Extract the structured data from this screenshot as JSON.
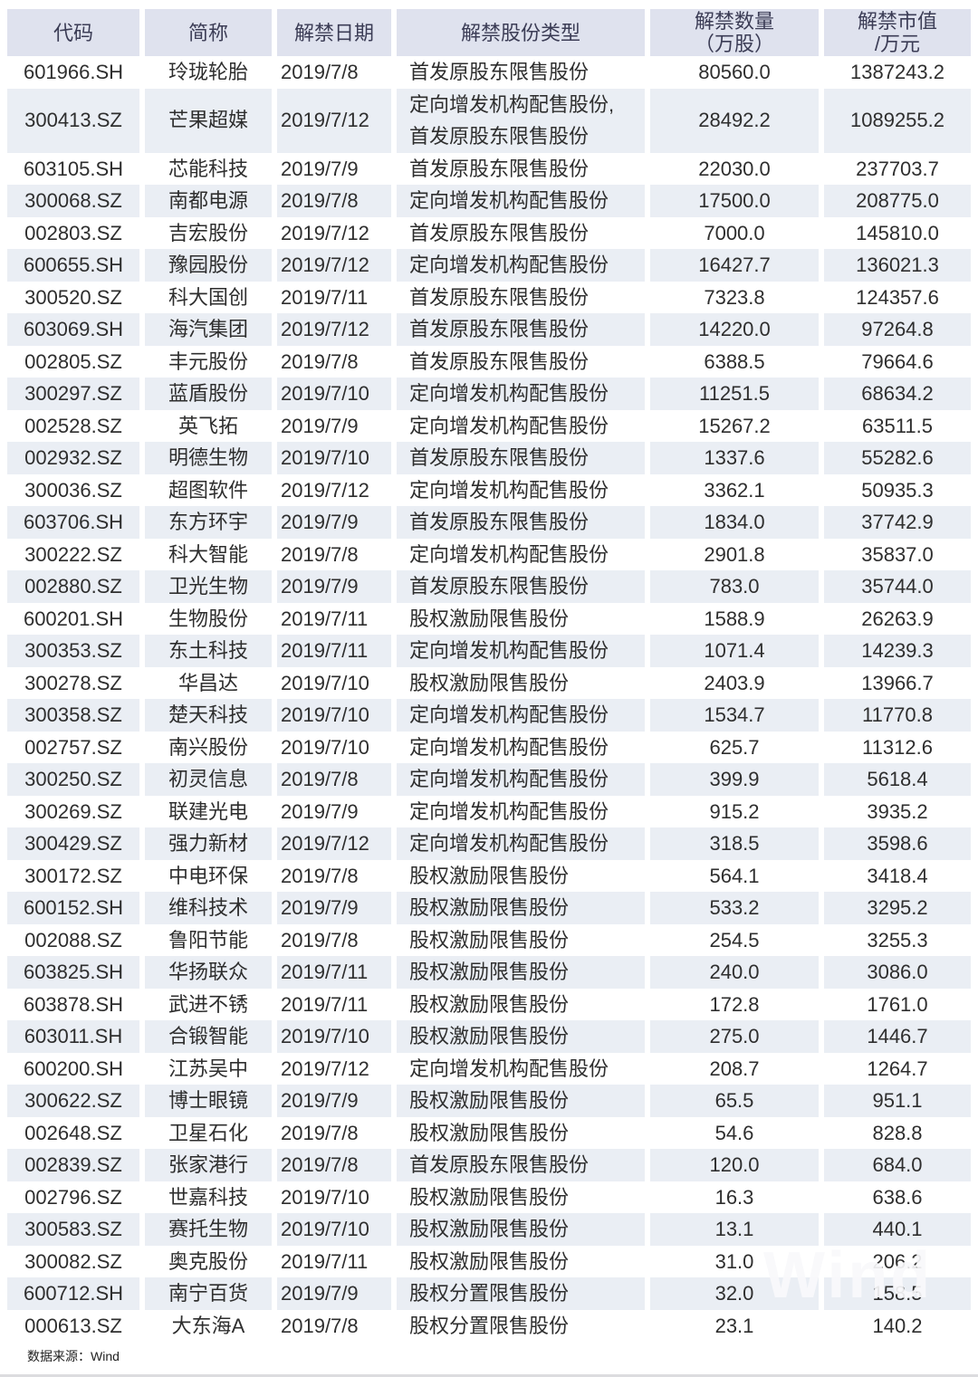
{
  "chart_data": {
    "type": "table",
    "title": "",
    "columns": [
      "代码",
      "简称",
      "解禁日期",
      "解禁股份类型",
      "解禁数量（万股）",
      "解禁市值/万元"
    ],
    "column_display": [
      "代码",
      "简称",
      "解禁日期",
      "解禁股份类型",
      "解禁数量\n（万股）",
      "解禁市值\n/万元"
    ],
    "rows": [
      [
        "601966.SH",
        "玲珑轮胎",
        "2019/7/8",
        "首发原股东限售股份",
        "80560.0",
        "1387243.2"
      ],
      [
        "300413.SZ",
        "芒果超媒",
        "2019/7/12",
        "定向增发机构配售股份,\n首发原股东限售股份",
        "28492.2",
        "1089255.2"
      ],
      [
        "603105.SH",
        "芯能科技",
        "2019/7/9",
        "首发原股东限售股份",
        "22030.0",
        "237703.7"
      ],
      [
        "300068.SZ",
        "南都电源",
        "2019/7/8",
        "定向增发机构配售股份",
        "17500.0",
        "208775.0"
      ],
      [
        "002803.SZ",
        "吉宏股份",
        "2019/7/12",
        "首发原股东限售股份",
        "7000.0",
        "145810.0"
      ],
      [
        "600655.SH",
        "豫园股份",
        "2019/7/12",
        "定向增发机构配售股份",
        "16427.7",
        "136021.3"
      ],
      [
        "300520.SZ",
        "科大国创",
        "2019/7/11",
        "首发原股东限售股份",
        "7323.8",
        "124357.6"
      ],
      [
        "603069.SH",
        "海汽集团",
        "2019/7/12",
        "首发原股东限售股份",
        "14220.0",
        "97264.8"
      ],
      [
        "002805.SZ",
        "丰元股份",
        "2019/7/8",
        "首发原股东限售股份",
        "6388.5",
        "79664.6"
      ],
      [
        "300297.SZ",
        "蓝盾股份",
        "2019/7/10",
        "定向增发机构配售股份",
        "11251.5",
        "68634.2"
      ],
      [
        "002528.SZ",
        "英飞拓",
        "2019/7/9",
        "定向增发机构配售股份",
        "15267.2",
        "63511.5"
      ],
      [
        "002932.SZ",
        "明德生物",
        "2019/7/10",
        "首发原股东限售股份",
        "1337.6",
        "55282.6"
      ],
      [
        "300036.SZ",
        "超图软件",
        "2019/7/12",
        "定向增发机构配售股份",
        "3362.1",
        "50935.3"
      ],
      [
        "603706.SH",
        "东方环宇",
        "2019/7/9",
        "首发原股东限售股份",
        "1834.0",
        "37742.9"
      ],
      [
        "300222.SZ",
        "科大智能",
        "2019/7/8",
        "定向增发机构配售股份",
        "2901.8",
        "35837.0"
      ],
      [
        "002880.SZ",
        "卫光生物",
        "2019/7/9",
        "首发原股东限售股份",
        "783.0",
        "35744.0"
      ],
      [
        "600201.SH",
        "生物股份",
        "2019/7/11",
        "股权激励限售股份",
        "1588.9",
        "26263.9"
      ],
      [
        "300353.SZ",
        "东土科技",
        "2019/7/11",
        "定向增发机构配售股份",
        "1071.4",
        "14239.3"
      ],
      [
        "300278.SZ",
        "华昌达",
        "2019/7/10",
        "股权激励限售股份",
        "2403.9",
        "13966.7"
      ],
      [
        "300358.SZ",
        "楚天科技",
        "2019/7/10",
        "定向增发机构配售股份",
        "1534.7",
        "11770.8"
      ],
      [
        "002757.SZ",
        "南兴股份",
        "2019/7/10",
        "定向增发机构配售股份",
        "625.7",
        "11312.6"
      ],
      [
        "300250.SZ",
        "初灵信息",
        "2019/7/8",
        "定向增发机构配售股份",
        "399.9",
        "5618.4"
      ],
      [
        "300269.SZ",
        "联建光电",
        "2019/7/9",
        "定向增发机构配售股份",
        "915.2",
        "3935.2"
      ],
      [
        "300429.SZ",
        "强力新材",
        "2019/7/12",
        "定向增发机构配售股份",
        "318.5",
        "3598.6"
      ],
      [
        "300172.SZ",
        "中电环保",
        "2019/7/8",
        "股权激励限售股份",
        "564.1",
        "3418.4"
      ],
      [
        "600152.SH",
        "维科技术",
        "2019/7/9",
        "股权激励限售股份",
        "533.2",
        "3295.2"
      ],
      [
        "002088.SZ",
        "鲁阳节能",
        "2019/7/8",
        "股权激励限售股份",
        "254.5",
        "3255.3"
      ],
      [
        "603825.SH",
        "华扬联众",
        "2019/7/11",
        "股权激励限售股份",
        "240.0",
        "3086.0"
      ],
      [
        "603878.SH",
        "武进不锈",
        "2019/7/11",
        "股权激励限售股份",
        "172.8",
        "1761.0"
      ],
      [
        "603011.SH",
        "合锻智能",
        "2019/7/10",
        "股权激励限售股份",
        "275.0",
        "1446.7"
      ],
      [
        "600200.SH",
        "江苏吴中",
        "2019/7/12",
        "定向增发机构配售股份",
        "208.7",
        "1264.7"
      ],
      [
        "300622.SZ",
        "博士眼镜",
        "2019/7/9",
        "股权激励限售股份",
        "65.5",
        "951.1"
      ],
      [
        "002648.SZ",
        "卫星石化",
        "2019/7/8",
        "股权激励限售股份",
        "54.6",
        "828.8"
      ],
      [
        "002839.SZ",
        "张家港行",
        "2019/7/8",
        "首发原股东限售股份",
        "120.0",
        "684.0"
      ],
      [
        "002796.SZ",
        "世嘉科技",
        "2019/7/10",
        "股权激励限售股份",
        "16.3",
        "638.6"
      ],
      [
        "300583.SZ",
        "赛托生物",
        "2019/7/10",
        "股权激励限售股份",
        "13.1",
        "440.1"
      ],
      [
        "300082.SZ",
        "奥克股份",
        "2019/7/11",
        "股权激励限售股份",
        "31.0",
        "206.2"
      ],
      [
        "600712.SH",
        "南宁百货",
        "2019/7/9",
        "股权分置限售股份",
        "32.0",
        "158.5"
      ],
      [
        "000613.SZ",
        "大东海A",
        "2019/7/8",
        "股权分置限售股份",
        "23.1",
        "140.2"
      ]
    ],
    "source": "数据来源：Wind",
    "layout": {
      "grid": false,
      "striped_rows": true,
      "header_position": "top"
    }
  },
  "watermark": {
    "text": "Wind"
  },
  "footer": {
    "source_label": "数据来源：Wind"
  },
  "colors": {
    "header_bg": "#dfe2ee",
    "header_text": "#3b3c55",
    "stripe_bg": "#eaeef4",
    "body_text": "#2e2e2e",
    "page_bg": "#ffffff"
  }
}
